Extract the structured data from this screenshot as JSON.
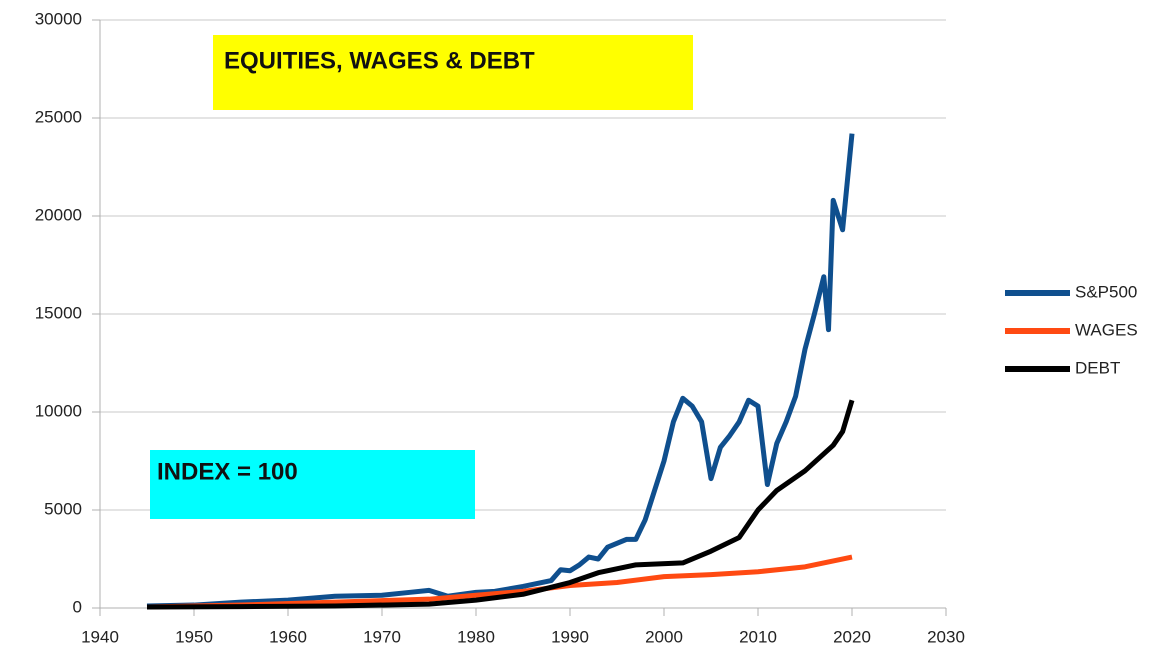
{
  "chart_data": {
    "type": "line",
    "title": "EQUITIES, WAGES & DEBT",
    "annotations": [
      "INDEX = 100"
    ],
    "xlim": [
      1940,
      2030
    ],
    "xticks": [
      1940,
      1950,
      1960,
      1970,
      1980,
      1990,
      2000,
      2010,
      2020,
      2030
    ],
    "ylim": [
      0,
      30000
    ],
    "yticks": [
      0,
      5000,
      10000,
      15000,
      20000,
      25000,
      30000
    ],
    "grid": true,
    "legend": "right",
    "series": [
      {
        "name": "S&P500",
        "color": "#0f4f8e",
        "x": [
          1945,
          1950,
          1955,
          1960,
          1965,
          1970,
          1973,
          1975,
          1977,
          1980,
          1982,
          1985,
          1988,
          1989,
          1990,
          1991,
          1992,
          1993,
          1994,
          1995,
          1996,
          1997,
          1998,
          1999,
          2000,
          2001,
          2002,
          2003,
          2004,
          2005,
          2006,
          2007,
          2008,
          2009,
          2010,
          2011,
          2012,
          2013,
          2014,
          2015,
          2016,
          2017,
          2017.5,
          2018,
          2019,
          2020
        ],
        "values": [
          100,
          150,
          300,
          400,
          600,
          650,
          800,
          900,
          600,
          800,
          850,
          1100,
          1400,
          1950,
          1900,
          2200,
          2600,
          2500,
          3100,
          3300,
          3500,
          3500,
          4500,
          6000,
          7500,
          9500,
          10700,
          10300,
          9500,
          6600,
          8200,
          8800,
          9500,
          10600,
          10300,
          6300,
          8400,
          9500,
          10800,
          13200,
          15000,
          16900,
          14200,
          20800,
          19300,
          24200
        ]
      },
      {
        "name": "WAGES",
        "color": "#ff4a12",
        "x": [
          1945,
          1955,
          1965,
          1975,
          1980,
          1985,
          1990,
          1995,
          2000,
          2005,
          2010,
          2015,
          2020
        ],
        "values": [
          50,
          150,
          300,
          450,
          650,
          850,
          1150,
          1300,
          1600,
          1700,
          1850,
          2100,
          2600
        ]
      },
      {
        "name": "DEBT",
        "color": "#000000",
        "x": [
          1945,
          1955,
          1965,
          1975,
          1980,
          1985,
          1990,
          1993,
          1997,
          2002,
          2005,
          2008,
          2010,
          2012,
          2015,
          2018,
          2019,
          2020
        ],
        "values": [
          50,
          70,
          100,
          200,
          400,
          700,
          1300,
          1800,
          2200,
          2300,
          2900,
          3600,
          5000,
          6000,
          7000,
          8300,
          9000,
          10600
        ]
      }
    ]
  }
}
